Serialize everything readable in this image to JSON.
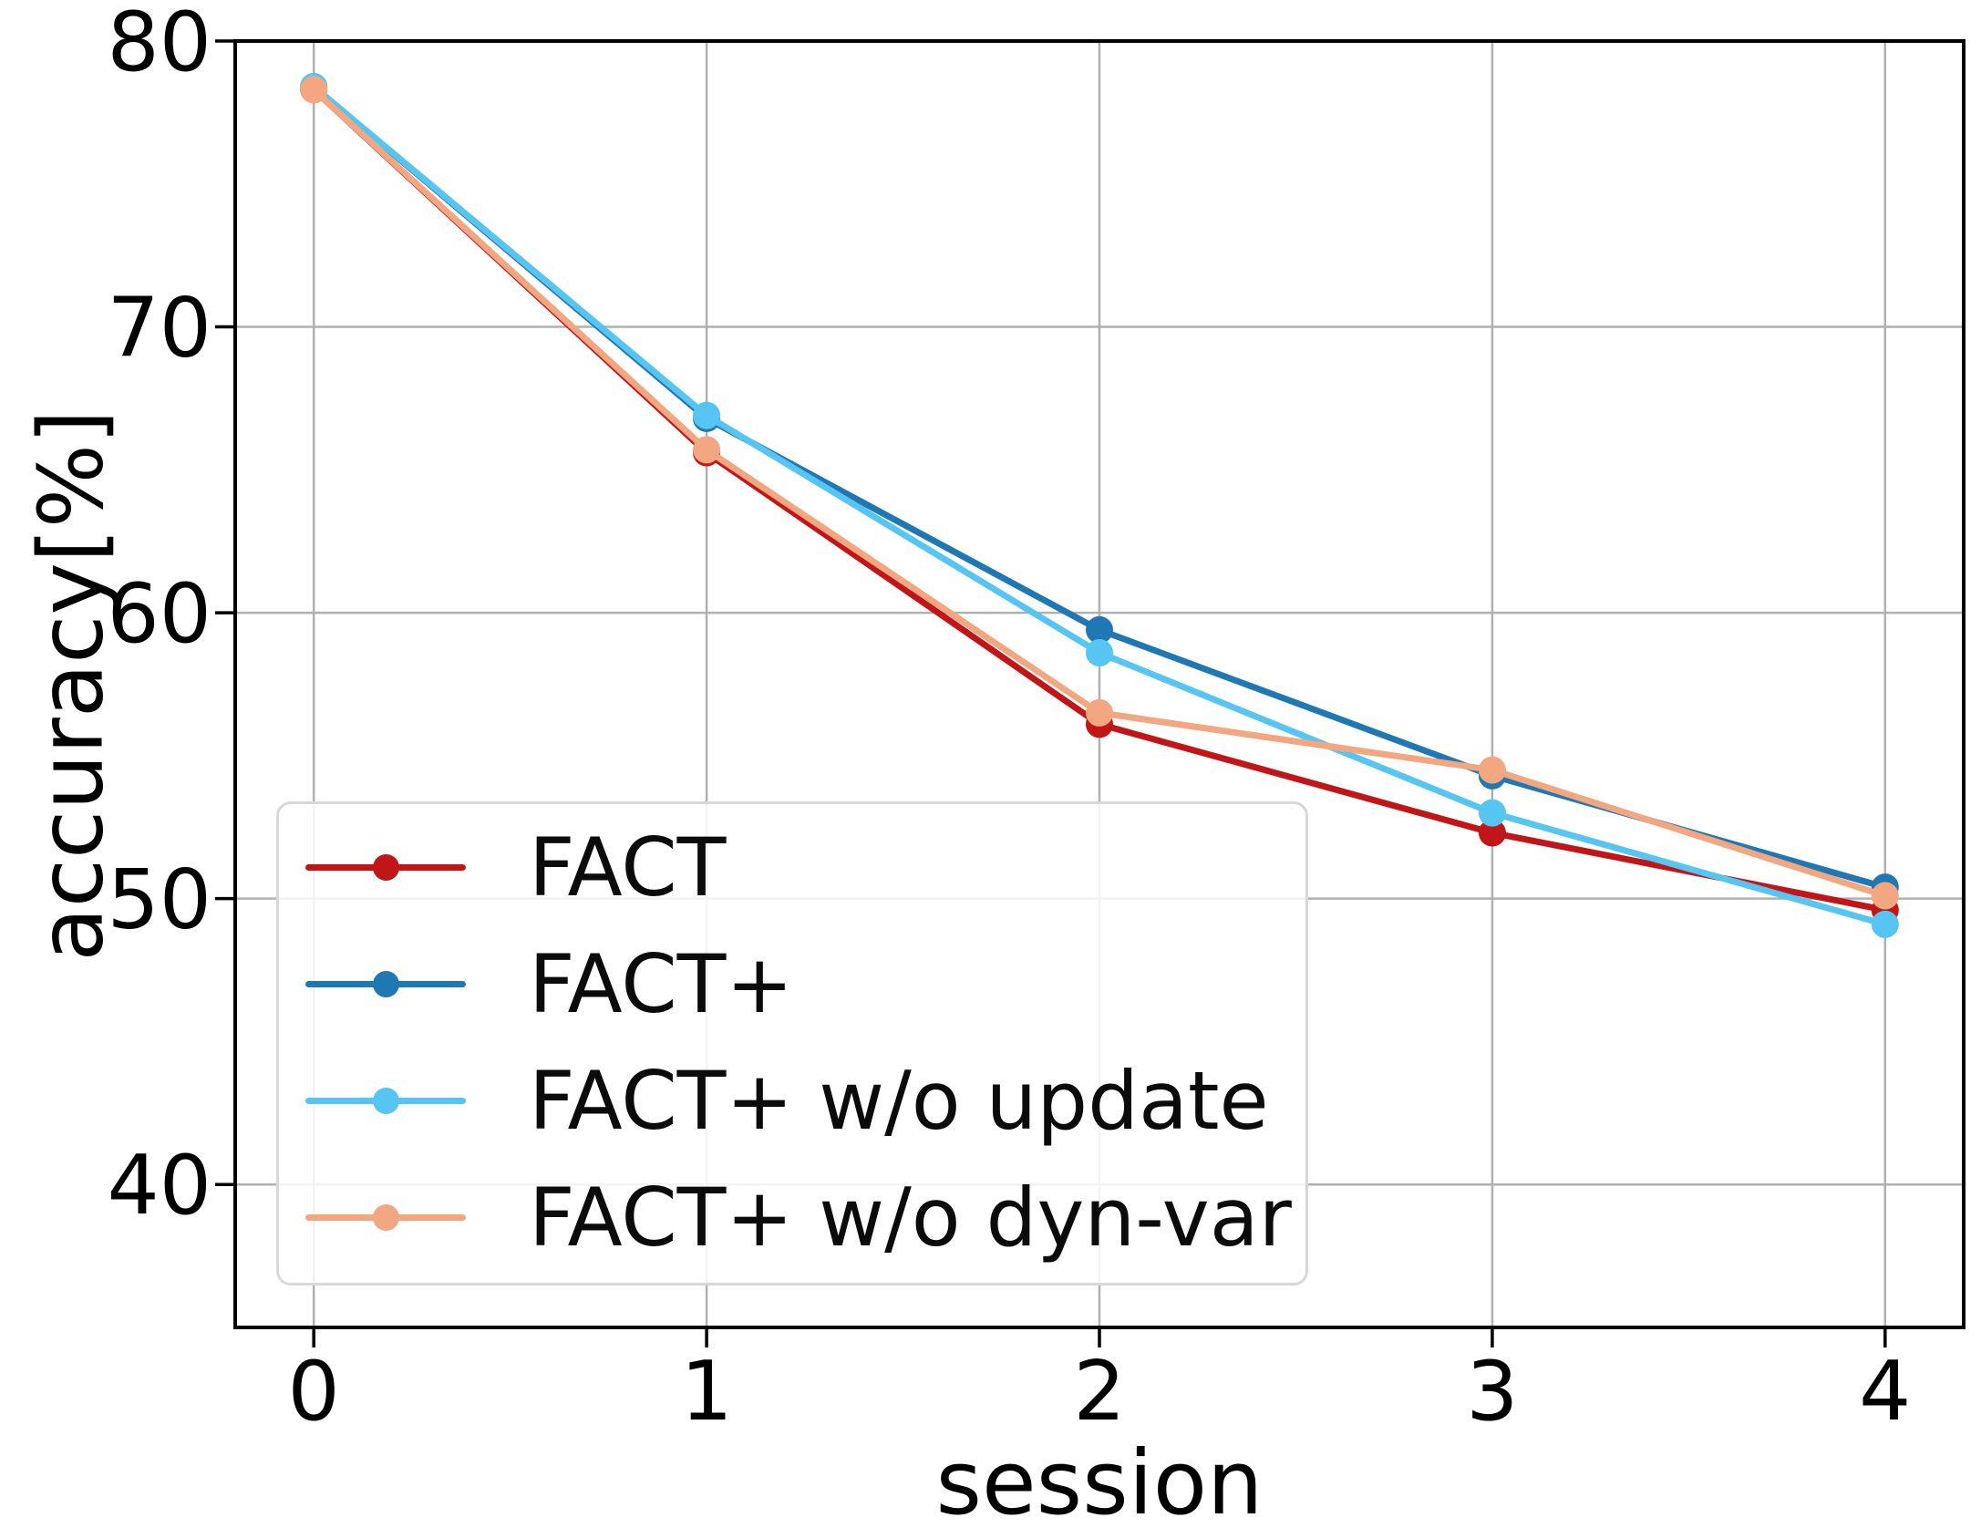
{
  "chart_data": {
    "type": "line",
    "title": "",
    "xlabel": "session",
    "ylabel": "accuracy[%]",
    "x": [
      0,
      1,
      2,
      3,
      4
    ],
    "x_tick_labels": [
      "0",
      "1",
      "2",
      "3",
      "4"
    ],
    "y_ticks": [
      40,
      50,
      60,
      70,
      80
    ],
    "y_tick_labels": [
      "40",
      "50",
      "60",
      "70",
      "80"
    ],
    "xlim": [
      -0.2,
      4.2
    ],
    "ylim": [
      35,
      80
    ],
    "grid": true,
    "legend_position": "lower left",
    "axis_color": "#000000",
    "grid_color": "#b0b0b0",
    "series": [
      {
        "name": "FACT",
        "color": "#c21518",
        "values": [
          78.3,
          65.6,
          56.1,
          52.3,
          49.6
        ]
      },
      {
        "name": "FACT+",
        "color": "#1f77b4",
        "values": [
          78.4,
          66.8,
          59.4,
          54.3,
          50.4
        ]
      },
      {
        "name": "FACT+ w/o update",
        "color": "#56c5f2",
        "values": [
          78.4,
          66.9,
          58.6,
          53.0,
          49.1
        ]
      },
      {
        "name": "FACT+ w/o dyn-var",
        "color": "#f2a780",
        "values": [
          78.3,
          65.7,
          56.5,
          54.5,
          50.1
        ]
      }
    ]
  }
}
